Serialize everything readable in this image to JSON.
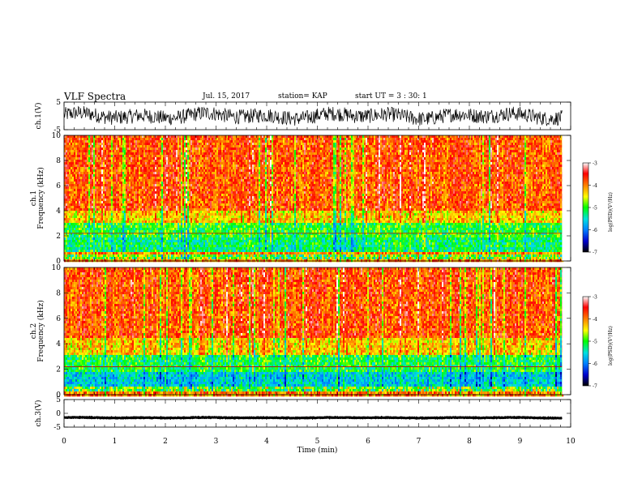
{
  "header": {
    "title": "VLF Spectra",
    "date": "Jul. 15, 2017",
    "station": "station= KAP",
    "start": "start UT = 3 : 30: 1"
  },
  "chart_data": [
    {
      "type": "line",
      "panel": "ch1-waveform",
      "ylabel": "ch.1(V)",
      "ylim": [
        -5,
        5
      ],
      "yticks": [
        "5",
        "-5"
      ],
      "xlim": [
        0,
        10
      ],
      "series": [
        {
          "values_note_free": true,
          "mean": 0.0,
          "amplitude": 3.0
        }
      ],
      "color": "#000000"
    },
    {
      "type": "heatmap",
      "panel": "ch1-spectrogram",
      "ylabel": "ch.1\nFrequency (kHz)",
      "ylim": [
        0,
        10
      ],
      "yticks": [
        "0",
        "2",
        "4",
        "6",
        "8",
        "10"
      ],
      "xlim": [
        0,
        10
      ],
      "bands": [
        {
          "from": 0,
          "to": 0.8,
          "level": "mixed"
        },
        {
          "from": 0.8,
          "to": 1.8,
          "level": -5.2
        },
        {
          "from": 1.8,
          "to": 3.0,
          "level": -5.0
        },
        {
          "from": 3.0,
          "to": 4.0,
          "level": -4.3
        },
        {
          "from": 4.0,
          "to": 10,
          "level": -3.8
        }
      ],
      "colorbar": {
        "label": "log(PSD)(V²/Hz)",
        "range": [
          -7,
          -3
        ],
        "ticks": [
          "-3",
          "-4",
          "-5",
          "-6",
          "-7"
        ]
      }
    },
    {
      "type": "heatmap",
      "panel": "ch2-spectrogram",
      "ylabel": "ch.2\nFrequency (kHz)",
      "ylim": [
        0,
        10
      ],
      "yticks": [
        "0",
        "2",
        "4",
        "6",
        "8",
        "10"
      ],
      "xlim": [
        0,
        10
      ],
      "bands": [
        {
          "from": 0,
          "to": 0.6,
          "level": "mixed"
        },
        {
          "from": 0.6,
          "to": 1.8,
          "level": -5.6
        },
        {
          "from": 1.8,
          "to": 3.2,
          "level": -5.1
        },
        {
          "from": 3.2,
          "to": 4.5,
          "level": -4.3
        },
        {
          "from": 4.5,
          "to": 10,
          "level": -3.8
        }
      ],
      "colorbar": {
        "label": "log(PSD)(V²/Hz)",
        "range": [
          -7,
          -3
        ],
        "ticks": [
          "-3",
          "-4",
          "-5",
          "-6",
          "-7"
        ]
      }
    },
    {
      "type": "line",
      "panel": "ch3-waveform",
      "ylabel": "ch.3(V)",
      "ylim": [
        -5,
        5
      ],
      "yticks": [
        "5",
        "0",
        "-5"
      ],
      "xlim": [
        0,
        10
      ],
      "series": [
        {
          "mean": -1.6,
          "amplitude": 0.3
        }
      ],
      "color": "#000000"
    }
  ],
  "xaxis": {
    "label": "Time (min)",
    "ticks": [
      "0",
      "1",
      "2",
      "3",
      "4",
      "5",
      "6",
      "7",
      "8",
      "9",
      "10"
    ],
    "data_end": 9.83
  },
  "colors": {
    "scale": [
      "#000000",
      "#0000cc",
      "#0080ff",
      "#00e0e0",
      "#00ff00",
      "#ffff00",
      "#ff8000",
      "#ff0000",
      "#ffffff"
    ]
  }
}
